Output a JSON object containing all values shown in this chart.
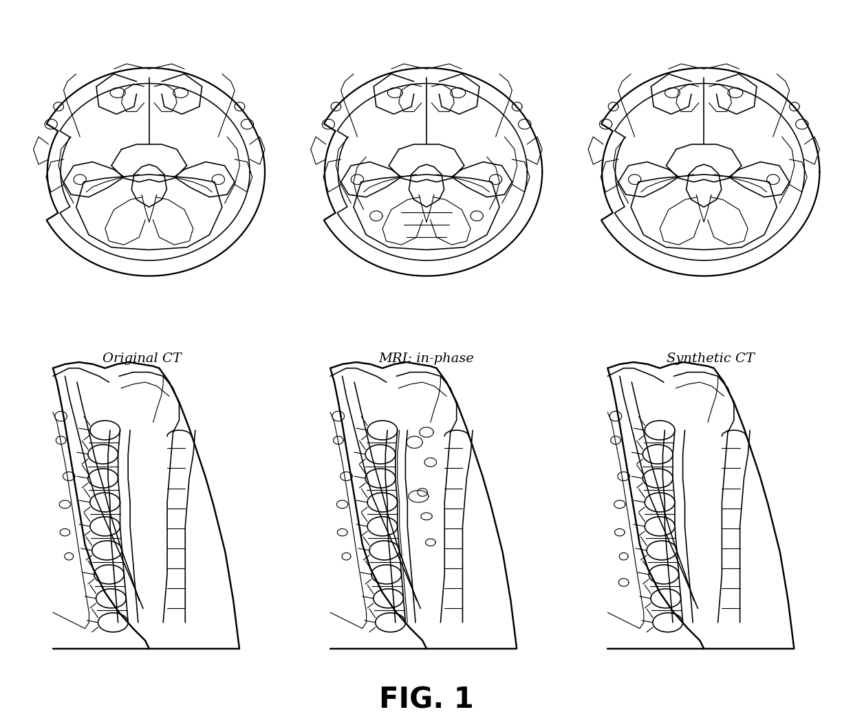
{
  "title": "FIG. 1",
  "labels": [
    "Original CT",
    "MRI: in-phase",
    "Synthetic CT"
  ],
  "background_color": "#ffffff",
  "line_color": "#000000",
  "line_width": 1.2,
  "fig_width": 12.4,
  "fig_height": 10.55,
  "title_fontsize": 30,
  "label_fontsize": 14
}
